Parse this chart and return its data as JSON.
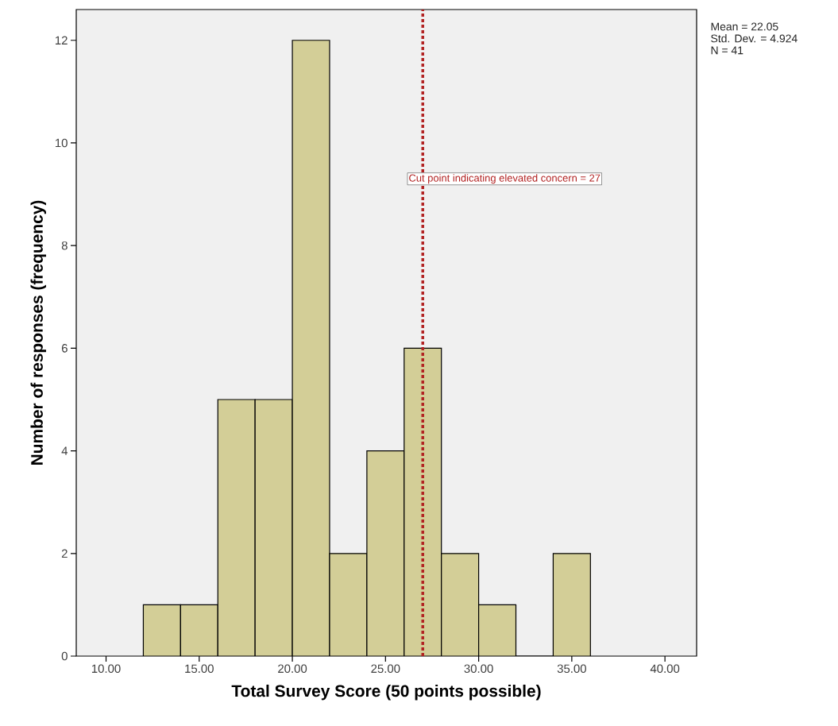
{
  "chart_data": {
    "type": "histogram",
    "xlabel": "Total Survey Score (50 points possible)",
    "ylabel": "Number of responses (frequency)",
    "bins": [
      12,
      14,
      16,
      18,
      20,
      22,
      24,
      26,
      28,
      30,
      32,
      34,
      36
    ],
    "values": [
      1,
      1,
      5,
      5,
      12,
      2,
      4,
      6,
      2,
      1,
      0,
      2
    ],
    "color": "#d3ce97",
    "xlim": [
      8.4,
      41.7
    ],
    "xticks": [
      {
        "value": 10,
        "label": "10.00"
      },
      {
        "value": 15,
        "label": "15.00"
      },
      {
        "value": 20,
        "label": "20.00"
      },
      {
        "value": 25,
        "label": "25.00"
      },
      {
        "value": 30,
        "label": "30.00"
      },
      {
        "value": 35,
        "label": "35.00"
      },
      {
        "value": 40,
        "label": "40.00"
      }
    ],
    "ylim": [
      0,
      12.6
    ],
    "yticks": [
      0,
      2,
      4,
      6,
      8,
      10,
      12
    ],
    "grid": false,
    "ref_lines": [
      {
        "axis": "x",
        "value": 27,
        "label": "Cut point indicating elevated concern = 27",
        "color": "#b22222",
        "line_style": "dotted"
      }
    ],
    "annotations": [
      "Mean = 22.05",
      "Std. Dev. = 4.924",
      "N = 41"
    ]
  }
}
